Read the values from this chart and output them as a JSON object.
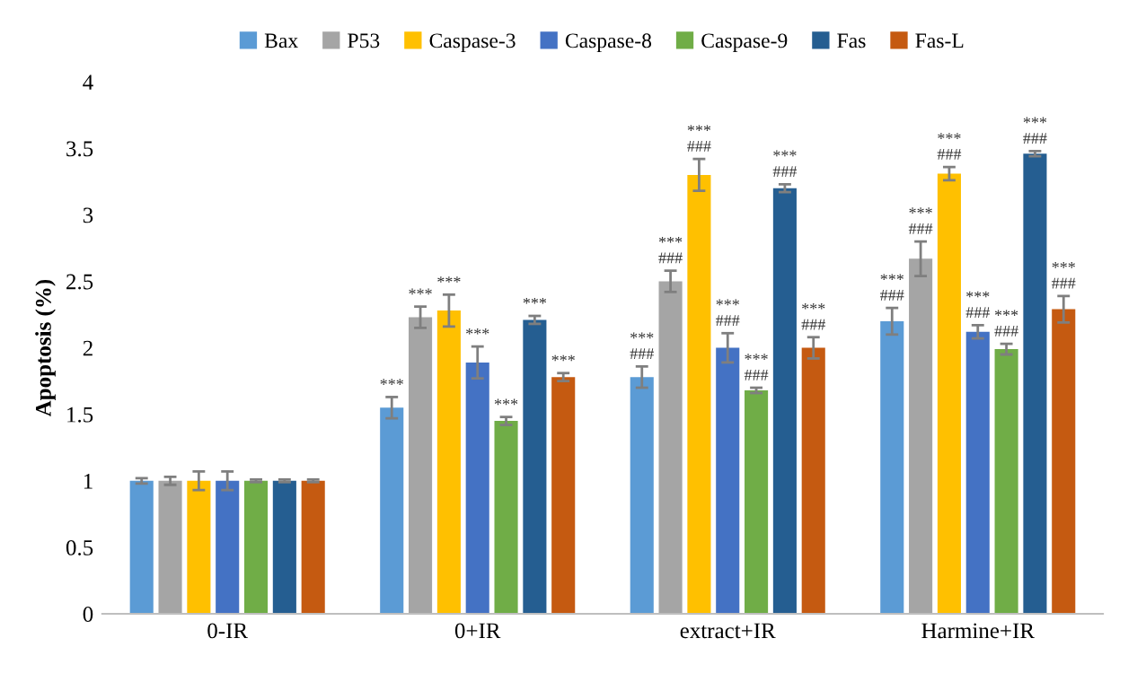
{
  "chart_data": {
    "type": "bar",
    "ylabel": "Apoptosis (%)",
    "categories": [
      "0-IR",
      "0+IR",
      "extract+IR",
      "Harmine+IR"
    ],
    "ylim": [
      0,
      4
    ],
    "yticks": [
      0,
      0.5,
      1,
      1.5,
      2,
      2.5,
      3,
      3.5,
      4
    ],
    "grid": false,
    "legend": "top",
    "series": [
      {
        "name": "Bax",
        "color": "#5b9bd5",
        "values": [
          1.0,
          1.55,
          1.78,
          2.2
        ],
        "errors": [
          0.02,
          0.08,
          0.08,
          0.1
        ],
        "value_labels": [
          null,
          "***",
          "***\n###",
          "***\n###"
        ]
      },
      {
        "name": "P53",
        "color": "#a5a5a5",
        "values": [
          1.0,
          2.23,
          2.5,
          2.67
        ],
        "errors": [
          0.03,
          0.08,
          0.08,
          0.13
        ],
        "value_labels": [
          null,
          "***",
          "***\n###",
          "***\n###"
        ]
      },
      {
        "name": "Caspase-3",
        "color": "#ffc000",
        "values": [
          1.0,
          2.28,
          3.3,
          3.31
        ],
        "errors": [
          0.07,
          0.12,
          0.12,
          0.05
        ],
        "value_labels": [
          null,
          "***",
          "***\n###",
          "***\n###"
        ]
      },
      {
        "name": "Caspase-8",
        "color": "#4472c4",
        "values": [
          1.0,
          1.89,
          2.0,
          2.12
        ],
        "errors": [
          0.07,
          0.12,
          0.11,
          0.05
        ],
        "value_labels": [
          null,
          "***",
          "***\n###",
          "***\n###"
        ]
      },
      {
        "name": "Caspase-9",
        "color": "#70ad47",
        "values": [
          1.0,
          1.45,
          1.68,
          1.99
        ],
        "errors": [
          0.01,
          0.03,
          0.02,
          0.04
        ],
        "value_labels": [
          null,
          "***",
          "***\n###",
          "***\n###"
        ]
      },
      {
        "name": "Fas",
        "color": "#255e91",
        "values": [
          1.0,
          2.21,
          3.2,
          3.46
        ],
        "errors": [
          0.01,
          0.03,
          0.03,
          0.02
        ],
        "value_labels": [
          null,
          "***",
          "***\n###",
          "***\n###"
        ]
      },
      {
        "name": "Fas-L",
        "color": "#c55a11",
        "values": [
          1.0,
          1.78,
          2.0,
          2.29
        ],
        "errors": [
          0.01,
          0.03,
          0.08,
          0.1
        ],
        "value_labels": [
          null,
          "***",
          "***\n###",
          "***\n###"
        ]
      }
    ]
  }
}
